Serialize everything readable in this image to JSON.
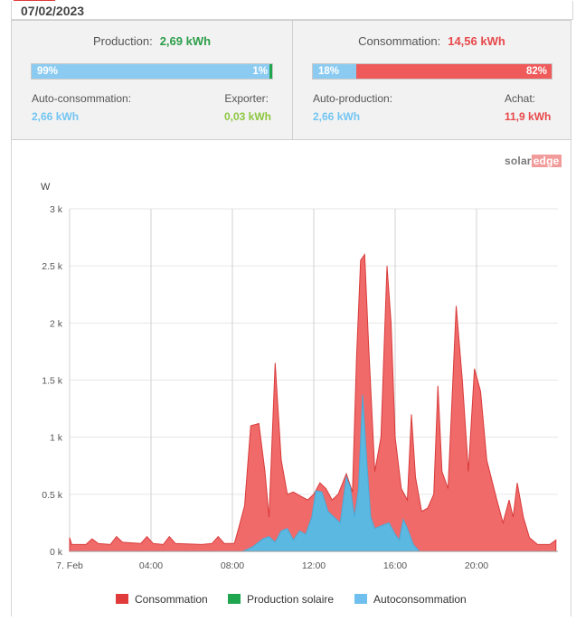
{
  "header": {
    "date": "07/02/2023"
  },
  "production": {
    "label": "Production:",
    "value": "2,69 kWh",
    "self_pct": "99%",
    "export_pct": "1%",
    "self_fraction": 0.99,
    "export_fraction": 0.01,
    "self_label": "Auto-consommation:",
    "self_value": "2,66 kWh",
    "export_label": "Exporter:",
    "export_value": "0,03 kWh"
  },
  "consumption": {
    "label": "Consommation:",
    "value": "14,56 kWh",
    "self_pct": "18%",
    "import_pct": "82%",
    "self_fraction": 0.18,
    "import_fraction": 0.82,
    "self_label": "Auto-production:",
    "self_value": "2,66 kWh",
    "import_label": "Achat:",
    "import_value": "11,9 kWh"
  },
  "brand": {
    "solar": "solar",
    "edge": "edge"
  },
  "colors": {
    "consumption": "#f06a6a",
    "consumption_legend": "#e03a3a",
    "production": "#1fa64f",
    "self": "#6fc0ee",
    "self_fill": "#5bb8e0"
  },
  "chart_data": {
    "type": "area",
    "ylabel": "W",
    "ylim": [
      0,
      3000
    ],
    "yticks": [
      {
        "v": 0,
        "label": "0 k"
      },
      {
        "v": 500,
        "label": "0.5 k"
      },
      {
        "v": 1000,
        "label": "1 k"
      },
      {
        "v": 1500,
        "label": "1.5 k"
      },
      {
        "v": 2000,
        "label": "2 k"
      },
      {
        "v": 2500,
        "label": "2.5 k"
      },
      {
        "v": 3000,
        "label": "3 k"
      }
    ],
    "xlim": [
      0,
      24
    ],
    "xticks": [
      {
        "v": 0,
        "label": "7. Feb"
      },
      {
        "v": 4,
        "label": "04:00"
      },
      {
        "v": 8,
        "label": "08:00"
      },
      {
        "v": 12,
        "label": "12:00"
      },
      {
        "v": 16,
        "label": "16:00"
      },
      {
        "v": 20,
        "label": "20:00"
      }
    ],
    "legend": [
      "Consommation",
      "Production solaire",
      "Autoconsommation"
    ],
    "series": [
      {
        "name": "Consommation",
        "points": [
          [
            0,
            120
          ],
          [
            0.1,
            60
          ],
          [
            0.8,
            60
          ],
          [
            1.1,
            110
          ],
          [
            1.4,
            70
          ],
          [
            2.0,
            60
          ],
          [
            2.3,
            130
          ],
          [
            2.6,
            80
          ],
          [
            3.5,
            70
          ],
          [
            3.8,
            130
          ],
          [
            4.1,
            70
          ],
          [
            4.6,
            60
          ],
          [
            4.9,
            130
          ],
          [
            5.2,
            70
          ],
          [
            6.5,
            60
          ],
          [
            7.0,
            70
          ],
          [
            7.3,
            130
          ],
          [
            7.6,
            70
          ],
          [
            8.1,
            70
          ],
          [
            8.3,
            200
          ],
          [
            8.6,
            400
          ],
          [
            8.9,
            1100
          ],
          [
            9.3,
            1120
          ],
          [
            9.6,
            700
          ],
          [
            9.8,
            300
          ],
          [
            10.1,
            1650
          ],
          [
            10.4,
            800
          ],
          [
            10.7,
            500
          ],
          [
            11.0,
            520
          ],
          [
            11.4,
            480
          ],
          [
            11.7,
            450
          ],
          [
            12.0,
            500
          ],
          [
            12.3,
            600
          ],
          [
            12.6,
            550
          ],
          [
            12.9,
            450
          ],
          [
            13.2,
            500
          ],
          [
            13.6,
            680
          ],
          [
            13.9,
            520
          ],
          [
            14.1,
            1700
          ],
          [
            14.3,
            2550
          ],
          [
            14.5,
            2600
          ],
          [
            14.7,
            1800
          ],
          [
            15.0,
            700
          ],
          [
            15.3,
            1000
          ],
          [
            15.6,
            2500
          ],
          [
            15.8,
            2000
          ],
          [
            16.0,
            1000
          ],
          [
            16.3,
            550
          ],
          [
            16.6,
            450
          ],
          [
            16.8,
            1200
          ],
          [
            17.0,
            650
          ],
          [
            17.3,
            350
          ],
          [
            17.6,
            380
          ],
          [
            17.9,
            500
          ],
          [
            18.1,
            1450
          ],
          [
            18.3,
            700
          ],
          [
            18.6,
            550
          ],
          [
            19.0,
            2150
          ],
          [
            19.3,
            1500
          ],
          [
            19.6,
            700
          ],
          [
            19.9,
            1600
          ],
          [
            20.2,
            1400
          ],
          [
            20.5,
            800
          ],
          [
            21.0,
            450
          ],
          [
            21.3,
            250
          ],
          [
            21.6,
            450
          ],
          [
            21.8,
            300
          ],
          [
            22.0,
            600
          ],
          [
            22.3,
            300
          ],
          [
            22.6,
            120
          ],
          [
            23.0,
            60
          ],
          [
            23.6,
            60
          ],
          [
            23.9,
            100
          ]
        ]
      },
      {
        "name": "Autoconsommation",
        "points": [
          [
            0,
            0
          ],
          [
            8.5,
            0
          ],
          [
            9.0,
            40
          ],
          [
            9.5,
            110
          ],
          [
            9.8,
            130
          ],
          [
            10.1,
            80
          ],
          [
            10.4,
            180
          ],
          [
            10.7,
            200
          ],
          [
            11.0,
            100
          ],
          [
            11.3,
            180
          ],
          [
            11.6,
            150
          ],
          [
            11.9,
            300
          ],
          [
            12.1,
            530
          ],
          [
            12.4,
            520
          ],
          [
            12.7,
            350
          ],
          [
            13.0,
            300
          ],
          [
            13.3,
            250
          ],
          [
            13.6,
            650
          ],
          [
            13.8,
            560
          ],
          [
            14.0,
            300
          ],
          [
            14.2,
            550
          ],
          [
            14.4,
            1370
          ],
          [
            14.6,
            800
          ],
          [
            14.8,
            300
          ],
          [
            15.0,
            200
          ],
          [
            15.4,
            230
          ],
          [
            15.7,
            250
          ],
          [
            16.0,
            150
          ],
          [
            16.2,
            100
          ],
          [
            16.4,
            280
          ],
          [
            16.6,
            200
          ],
          [
            16.9,
            60
          ],
          [
            17.2,
            0
          ],
          [
            24,
            0
          ]
        ]
      },
      {
        "name": "Production solaire",
        "points": []
      }
    ]
  }
}
